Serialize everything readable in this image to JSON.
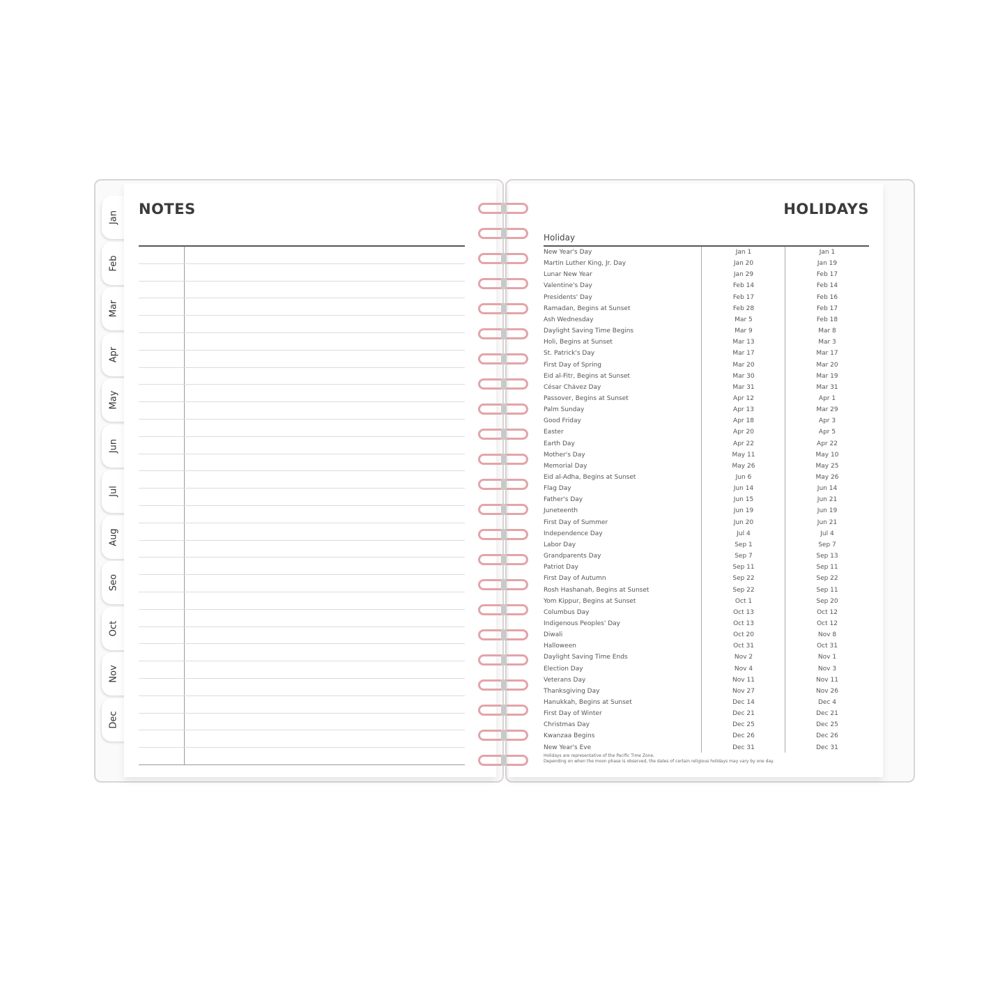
{
  "tabs": [
    "Jan",
    "Feb",
    "Mar",
    "Apr",
    "May",
    "Jun",
    "Jul",
    "Aug",
    "Seo",
    "Oct",
    "Nov",
    "Dec"
  ],
  "notes": {
    "title": "NOTES"
  },
  "holidays": {
    "title": "HOLIDAYS",
    "column_header": "Holiday",
    "rows": [
      [
        "New Year's Day",
        "Jan 1",
        "Jan 1"
      ],
      [
        "Martin Luther King, Jr. Day",
        "Jan 20",
        "Jan 19"
      ],
      [
        "Lunar New Year",
        "Jan 29",
        "Feb 17"
      ],
      [
        "Valentine's Day",
        "Feb 14",
        "Feb 14"
      ],
      [
        "Presidents' Day",
        "Feb 17",
        "Feb 16"
      ],
      [
        "Ramadan, Begins at Sunset",
        "Feb 28",
        "Feb 17"
      ],
      [
        "Ash Wednesday",
        "Mar 5",
        "Feb 18"
      ],
      [
        "Daylight Saving Time Begins",
        "Mar 9",
        "Mar 8"
      ],
      [
        "Holi, Begins at Sunset",
        "Mar 13",
        "Mar 3"
      ],
      [
        "St. Patrick's Day",
        "Mar 17",
        "Mar 17"
      ],
      [
        "First Day of Spring",
        "Mar 20",
        "Mar 20"
      ],
      [
        "Eid al-Fitr, Begins at Sunset",
        "Mar 30",
        "Mar 19"
      ],
      [
        "César Chávez Day",
        "Mar 31",
        "Mar 31"
      ],
      [
        "Passover, Begins at Sunset",
        "Apr 12",
        "Apr 1"
      ],
      [
        "Palm Sunday",
        "Apr 13",
        "Mar 29"
      ],
      [
        "Good Friday",
        "Apr 18",
        "Apr 3"
      ],
      [
        "Easter",
        "Apr 20",
        "Apr 5"
      ],
      [
        "Earth Day",
        "Apr 22",
        "Apr 22"
      ],
      [
        "Mother's Day",
        "May 11",
        "May 10"
      ],
      [
        "Memorial Day",
        "May 26",
        "May 25"
      ],
      [
        "Eid al-Adha, Begins at Sunset",
        "Jun 6",
        "May 26"
      ],
      [
        "Flag Day",
        "Jun 14",
        "Jun 14"
      ],
      [
        "Father's Day",
        "Jun 15",
        "Jun 21"
      ],
      [
        "Juneteenth",
        "Jun 19",
        "Jun 19"
      ],
      [
        "First Day of Summer",
        "Jun 20",
        "Jun 21"
      ],
      [
        "Independence Day",
        "Jul 4",
        "Jul 4"
      ],
      [
        "Labor Day",
        "Sep 1",
        "Sep 7"
      ],
      [
        "Grandparents Day",
        "Sep 7",
        "Sep 13"
      ],
      [
        "Patriot Day",
        "Sep 11",
        "Sep 11"
      ],
      [
        "First Day of Autumn",
        "Sep 22",
        "Sep 22"
      ],
      [
        "Rosh Hashanah, Begins at Sunset",
        "Sep 22",
        "Sep 11"
      ],
      [
        "Yom Kippur, Begins at Sunset",
        "Oct 1",
        "Sep 20"
      ],
      [
        "Columbus Day",
        "Oct 13",
        "Oct 12"
      ],
      [
        "Indigenous Peoples' Day",
        "Oct 13",
        "Oct 12"
      ],
      [
        "Diwali",
        "Oct 20",
        "Nov 8"
      ],
      [
        "Halloween",
        "Oct 31",
        "Oct 31"
      ],
      [
        "Daylight Saving Time Ends",
        "Nov 2",
        "Nov 1"
      ],
      [
        "Election Day",
        "Nov 4",
        "Nov 3"
      ],
      [
        "Veterans Day",
        "Nov 11",
        "Nov 11"
      ],
      [
        "Thanksgiving Day",
        "Nov 27",
        "Nov 26"
      ],
      [
        "Hanukkah, Begins at Sunset",
        "Dec 14",
        "Dec 4"
      ],
      [
        "First Day of Winter",
        "Dec 21",
        "Dec 21"
      ],
      [
        "Christmas Day",
        "Dec 25",
        "Dec 25"
      ],
      [
        "Kwanzaa Begins",
        "Dec 26",
        "Dec 26"
      ],
      [
        "New Year's Eve",
        "Dec 31",
        "Dec 31"
      ]
    ],
    "footnotes": [
      "Holidays are representative of the Pacific Time Zone.",
      "Depending on when the moon phase is observed, the dates of certain religious holidays may vary by one day."
    ]
  },
  "colors": {
    "coil": "#e3a4a8",
    "text": "#3d3a3a"
  }
}
